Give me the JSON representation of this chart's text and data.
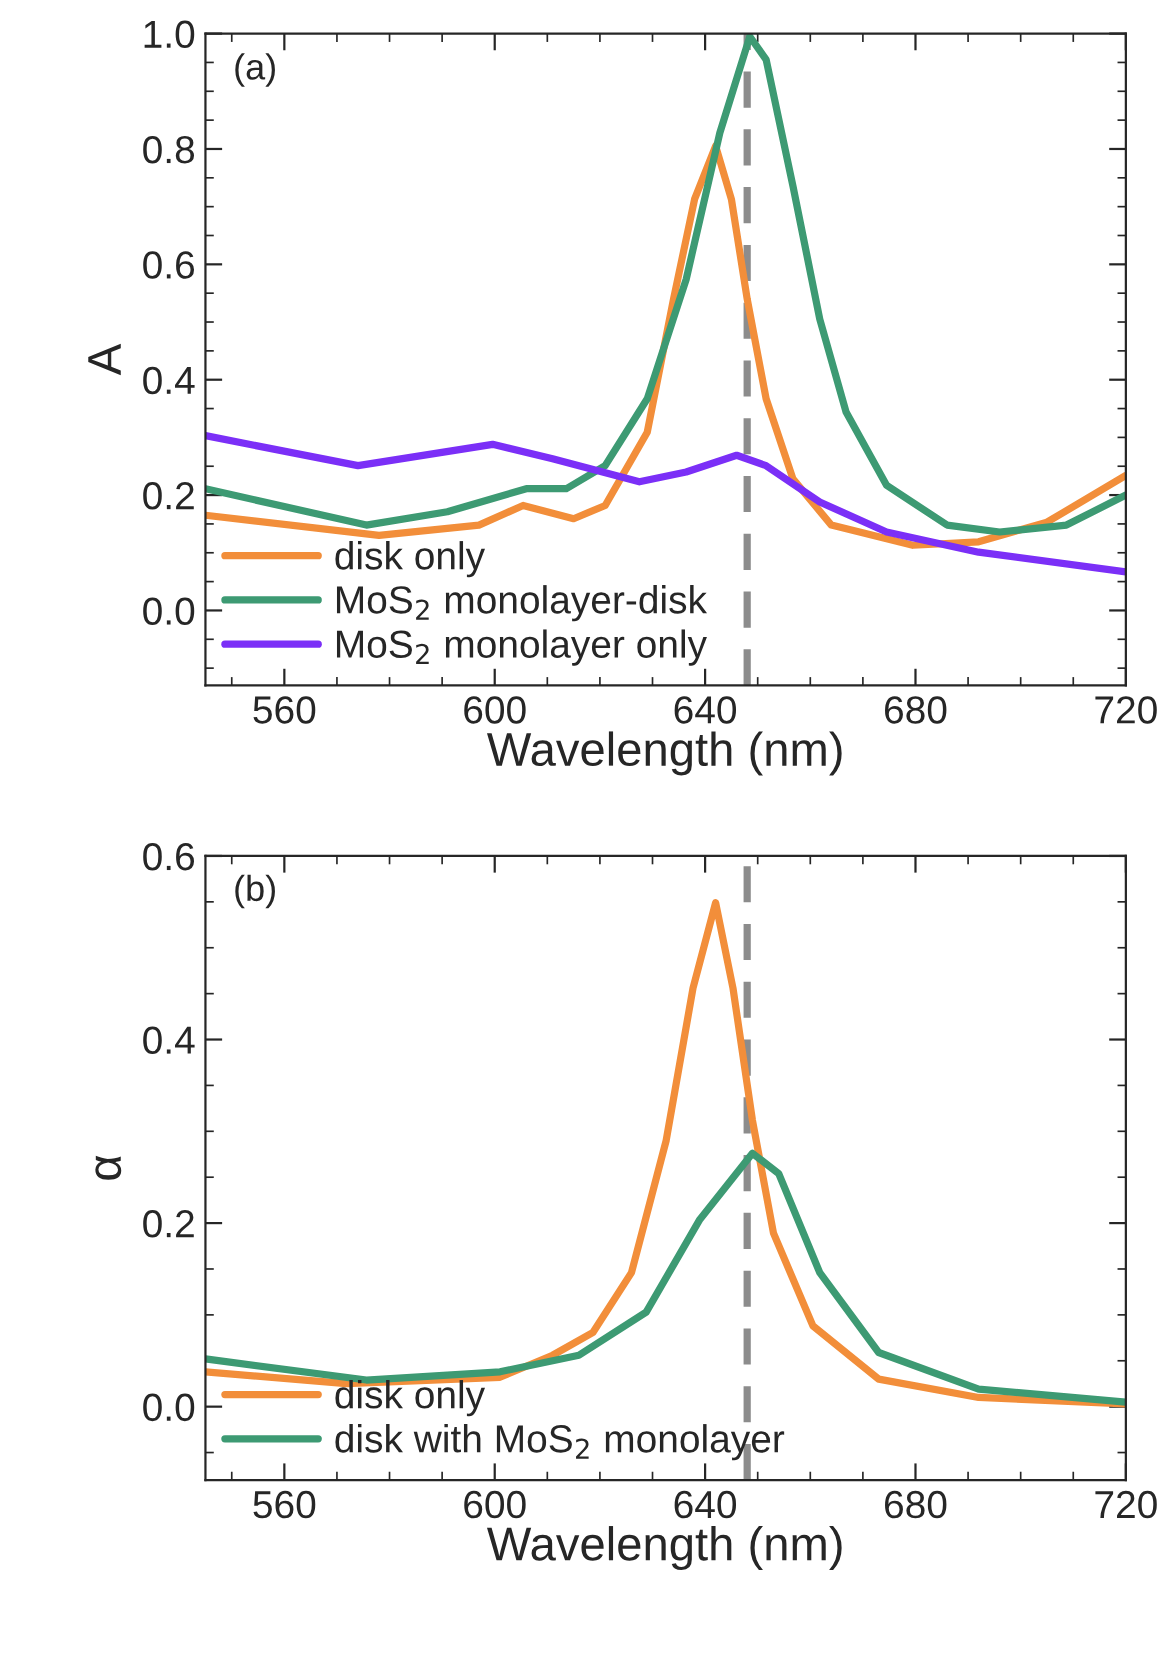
{
  "chart_data": [
    {
      "type": "line",
      "xlabel": "Wavelength (nm)",
      "ylabel": "A",
      "annotations": [
        "(a)"
      ],
      "xlim": [
        545,
        720
      ],
      "xticks": [
        560,
        600,
        640,
        680,
        720
      ],
      "ylim": [
        -0.13,
        1.0
      ],
      "yticks": [
        {
          "value": 0.0,
          "label": "0.0"
        },
        {
          "value": 0.2,
          "label": "0.2"
        },
        {
          "value": 0.4,
          "label": "0.4"
        },
        {
          "value": 0.6,
          "label": "0.6"
        },
        {
          "value": 0.8,
          "label": "0.8"
        },
        {
          "value": 1.0,
          "label": "1.0"
        }
      ],
      "legend": "bottom left",
      "grid": false,
      "ref_lines": [
        {
          "axis": "x",
          "value": 648,
          "color": "#8c8c8c",
          "line_style": "dashed"
        }
      ],
      "series": [
        {
          "name": "disk only",
          "color": "#f28e3a",
          "x": [
            545,
            578,
            597,
            605.4,
            615,
            621,
            629,
            634,
            638,
            642,
            645,
            648,
            651.6,
            656.7,
            664,
            679.5,
            692,
            705,
            720
          ],
          "values": [
            0.165,
            0.13,
            0.148,
            0.182,
            0.159,
            0.182,
            0.309,
            0.54,
            0.713,
            0.805,
            0.713,
            0.54,
            0.367,
            0.228,
            0.148,
            0.113,
            0.119,
            0.153,
            0.234
          ]
        },
        {
          "name": "MoS$_{2}$ monolayer-disk",
          "color": "#3d9a73",
          "x": [
            545,
            575.6,
            591,
            606,
            613.6,
            621,
            629,
            636.4,
            642.8,
            648.5,
            651.6,
            656.7,
            661.8,
            666.8,
            674.5,
            686,
            696,
            708.7,
            720
          ],
          "values": [
            0.211,
            0.148,
            0.171,
            0.211,
            0.211,
            0.251,
            0.367,
            0.574,
            0.828,
            0.995,
            0.955,
            0.736,
            0.505,
            0.344,
            0.217,
            0.148,
            0.136,
            0.148,
            0.2
          ]
        },
        {
          "name": "MoS$_{2}$ monolayer only",
          "color": "#7b2ff7",
          "x": [
            545,
            574,
            599.6,
            611,
            627.5,
            636.4,
            646,
            651.6,
            661.8,
            674.5,
            692,
            720
          ],
          "values": [
            0.303,
            0.251,
            0.288,
            0.263,
            0.223,
            0.24,
            0.269,
            0.251,
            0.188,
            0.136,
            0.101,
            0.067
          ]
        }
      ]
    },
    {
      "type": "line",
      "xlabel": "Wavelength (nm)",
      "ylabel": "α",
      "annotations": [
        "(b)"
      ],
      "xlim": [
        545,
        720
      ],
      "xticks": [
        560,
        600,
        640,
        680,
        720
      ],
      "ylim": [
        -0.08,
        0.6
      ],
      "yticks": [
        {
          "value": 0.0,
          "label": "0.0"
        },
        {
          "value": 0.2,
          "label": "0.2"
        },
        {
          "value": 0.4,
          "label": "0.4"
        },
        {
          "value": 0.6,
          "label": "0.6"
        }
      ],
      "legend": "bottom left",
      "grid": false,
      "ref_lines": [
        {
          "axis": "x",
          "value": 648,
          "color": "#8c8c8c",
          "line_style": "dashed"
        }
      ],
      "series": [
        {
          "name": "disk only",
          "color": "#f28e3a",
          "x": [
            545,
            571.8,
            601,
            611,
            618.7,
            626,
            632.6,
            637.7,
            642,
            645.3,
            649,
            653,
            660.5,
            673,
            692,
            720
          ],
          "values": [
            0.038,
            0.025,
            0.032,
            0.056,
            0.081,
            0.146,
            0.29,
            0.456,
            0.549,
            0.456,
            0.312,
            0.189,
            0.088,
            0.03,
            0.01,
            0.003
          ]
        },
        {
          "name": "disk with MoS$_{2}$ monolayer",
          "color": "#3d9a73",
          "x": [
            545,
            575.6,
            601,
            616,
            628.8,
            639,
            649,
            654,
            661.8,
            673,
            692,
            720
          ],
          "values": [
            0.052,
            0.029,
            0.038,
            0.056,
            0.103,
            0.204,
            0.276,
            0.254,
            0.146,
            0.059,
            0.019,
            0.005
          ]
        }
      ]
    }
  ]
}
